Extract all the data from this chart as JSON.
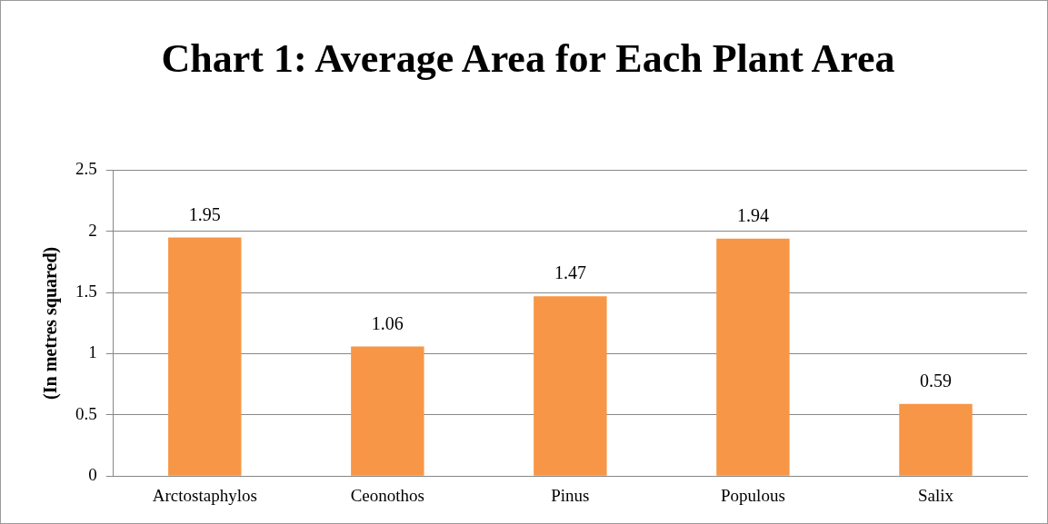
{
  "chart_data": {
    "type": "bar",
    "title": "Chart 1: Average Area for Each Plant Area",
    "ylabel": "(In metres squared)",
    "categories": [
      "Arctostaphylos",
      "Ceonothos",
      "Pinus",
      "Populous",
      "Salix"
    ],
    "values": [
      1.95,
      1.06,
      1.47,
      1.94,
      0.59
    ],
    "color": "#f79646",
    "ylim": [
      0,
      2.5
    ],
    "yticks": [
      0,
      0.5,
      1,
      1.5,
      2,
      2.5
    ],
    "grid": "y",
    "legend": false,
    "data_labels": true
  }
}
